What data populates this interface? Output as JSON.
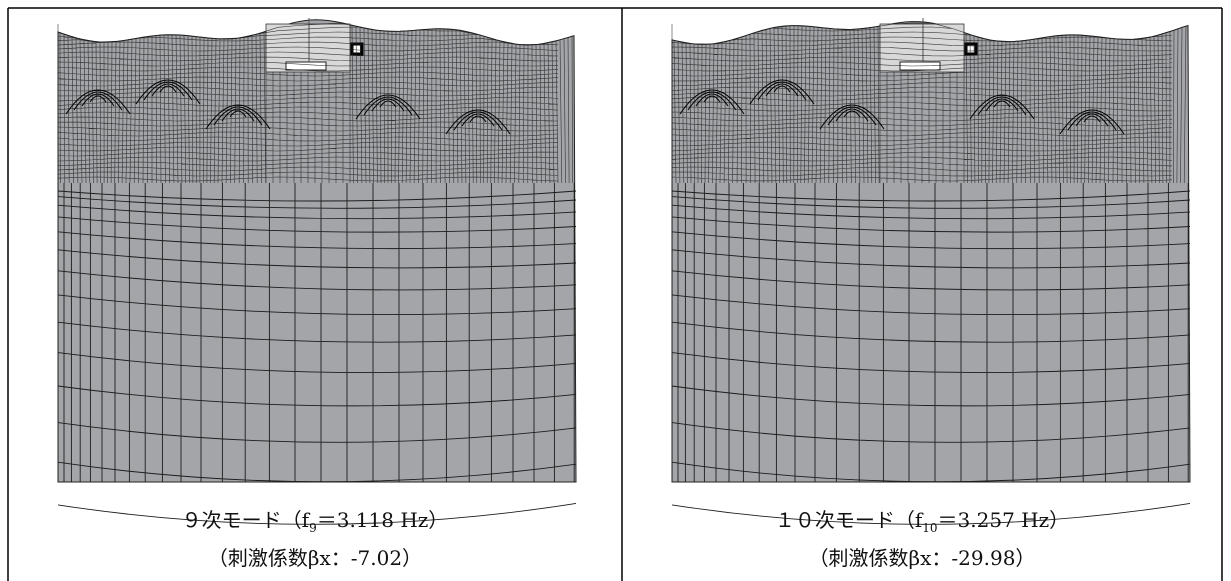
{
  "figures": [
    {
      "caption": {
        "mode": "９次モード（f",
        "subscript": "9",
        "frequency": "＝3.118 Hz）"
      },
      "participation": "（刺激係数βx：-7.02）"
    },
    {
      "caption": {
        "mode": "１０次モード（f",
        "subscript": "10",
        "frequency": "＝3.257 Hz）"
      },
      "participation": "（刺激係数βx：-29.98）"
    }
  ]
}
